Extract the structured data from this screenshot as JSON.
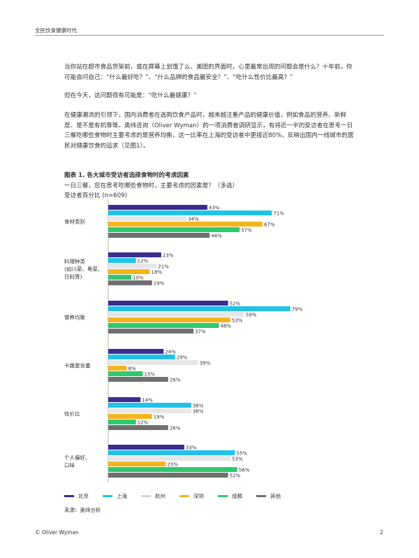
{
  "header": {
    "running_title": "全民饮食健康时代"
  },
  "body": {
    "p1": "当你站在超市食品货架前，或在屏幕上划饿了么、美团的界面时，心里最常出现的问题会是什么？十年前，你可能会问自己：“什么最好吃？”、“什么品牌的食品最安全？”、“吃什么性价比最高？”",
    "p2": "但在今天，这问题很有可能是：“吃什么最健康？”",
    "p3": "在健康潮流的引领下，国内消费者在选购饮食产品时，越来越注重产品的健康价值，例如食品的营养、新鲜度、是不是有机等等。奥纬咨询（Oliver Wyman）的一项消费者调研显示，有将近一半的受访者在思考一日三餐吃哪些食物时主要考虑的是营养均衡，这一比率在上海的受访者中更接近80%，反映出国内一线城市的居民对健康饮食的追求（见图1）。"
  },
  "figure": {
    "title": "图表 1. 各大城市受访者选择食物时的考虑因素",
    "subtitle1": "一日三餐，您在思考吃哪些食物时，主要考虑的因素是？（多选）",
    "subtitle2": "受访者百分比 (n=609)",
    "source": "来源：奥纬分析"
  },
  "chart_data": {
    "type": "bar",
    "orientation": "horizontal",
    "unit": "%",
    "categories": [
      "食材类别",
      "料理种类\n(如川菜、粤菜、\n日料等)",
      "营养均衡",
      "卡路里含量",
      "性价比",
      "个人偏好、\n口味"
    ],
    "series": [
      {
        "name": "北京",
        "color": "#3f2a8f",
        "values": [
          43,
          23,
          52,
          24,
          14,
          33
        ]
      },
      {
        "name": "上海",
        "color": "#1fc3ea",
        "values": [
          71,
          12,
          79,
          29,
          36,
          55
        ]
      },
      {
        "name": "杭州",
        "color": "#e6e6e6",
        "values": [
          34,
          21,
          59,
          39,
          36,
          53
        ]
      },
      {
        "name": "深圳",
        "color": "#f3b51a",
        "values": [
          67,
          18,
          53,
          8,
          19,
          25
        ]
      },
      {
        "name": "成都",
        "color": "#2fc86e",
        "values": [
          57,
          10,
          48,
          15,
          12,
          56
        ]
      },
      {
        "name": "其他",
        "color": "#707070",
        "values": [
          44,
          19,
          37,
          26,
          26,
          52
        ]
      }
    ],
    "xlim": [
      0,
      100
    ],
    "legend_position": "bottom",
    "grid": false
  },
  "footer": {
    "left": "© Oliver Wyman",
    "page": "2"
  }
}
